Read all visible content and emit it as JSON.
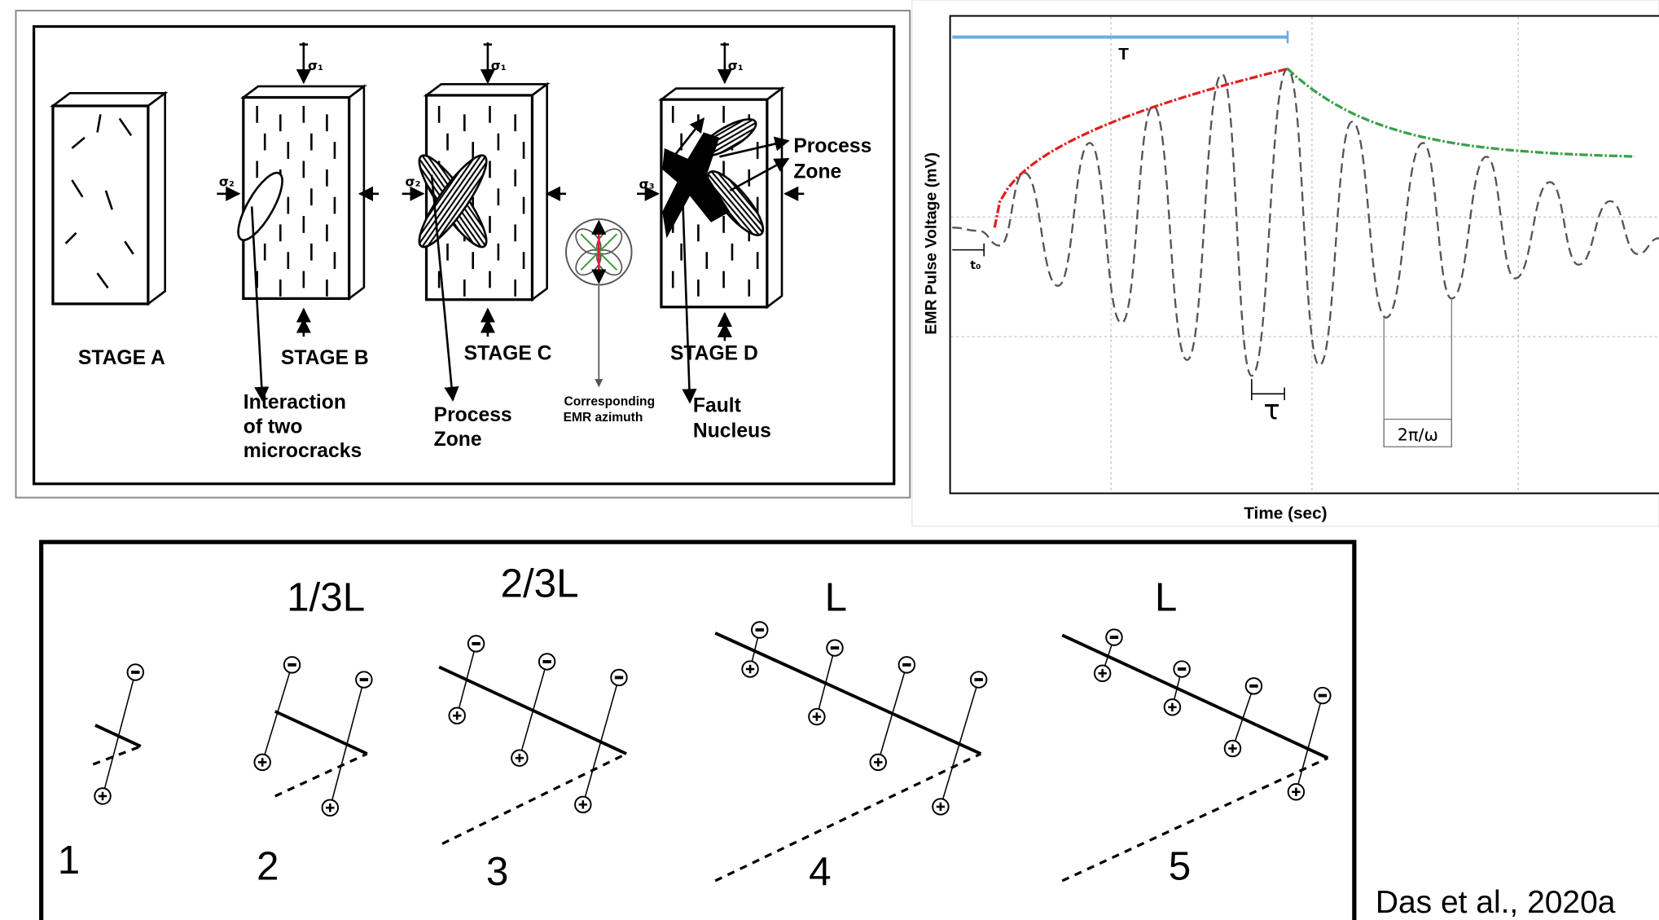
{
  "stages_panel": {
    "stages": [
      "STAGE A",
      "STAGE B",
      "STAGE C",
      "STAGE D"
    ],
    "stress": {
      "sigma1": "σ₁",
      "sigma2": "σ₂",
      "sigma3": "σ₃"
    },
    "interaction": [
      "Interaction",
      "of two",
      "microcracks"
    ],
    "process_zone_c": [
      "Process",
      "Zone"
    ],
    "azimuth": [
      "Corresponding",
      "EMR azimuth"
    ],
    "fault_nucleus": [
      "Fault",
      "Nucleus"
    ],
    "process_zone_d": [
      "Process",
      "Zone"
    ]
  },
  "emr_panel": {
    "y_label": "EMR Pulse Voltage (mV)",
    "x_label": "Time (sec)",
    "rise_time": "T",
    "onset": "t₀",
    "decay": "τ",
    "period": "2π/ω"
  },
  "crack_panel": {
    "lengths": [
      "1/3L",
      "2/3L",
      "L",
      "L"
    ],
    "steps": [
      "1",
      "2",
      "3",
      "4",
      "5"
    ]
  },
  "citation": "Das et al., 2020a"
}
